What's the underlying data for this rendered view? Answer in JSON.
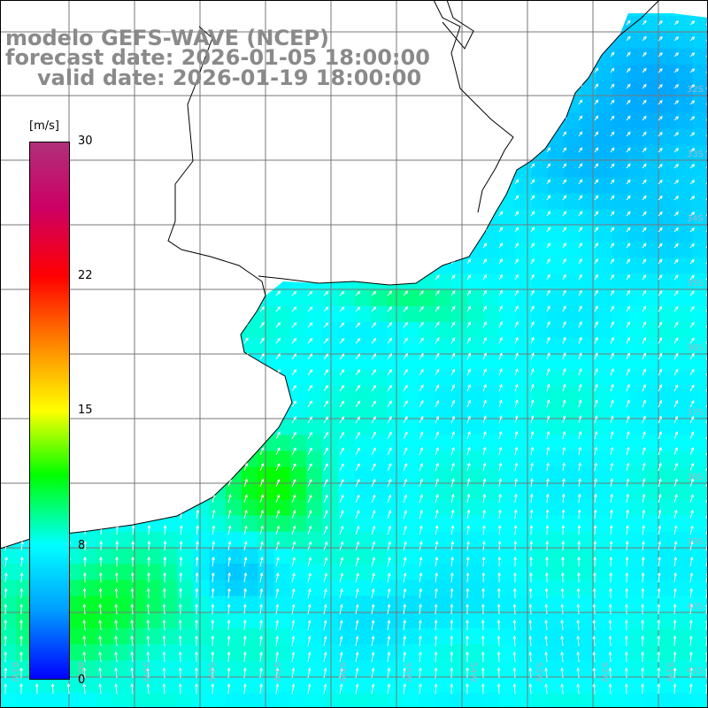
{
  "title": {
    "line1": "modelo GEFS-WAVE (NCEP)",
    "line2": "forecast date: 2026-01-05 18:00:00",
    "line3": "valid date: 2026-01-19 18:00:00"
  },
  "colorbar": {
    "unit": "[m/s]",
    "ticks": [
      "30",
      "22",
      "15",
      "8",
      "0"
    ],
    "min": 0,
    "max": 30,
    "colors": [
      "#0000ff",
      "#00a0ff",
      "#00ffff",
      "#00ff00",
      "#ffff00",
      "#ff8000",
      "#ff0000",
      "#cc0066",
      "#b0307a"
    ]
  },
  "map": {
    "lat_labels": [
      "32S",
      "33S",
      "34S",
      "35S",
      "36S",
      "37S",
      "38S",
      "39S",
      "40S",
      "41S"
    ],
    "lon_labels": [
      "61W",
      "60W",
      "59W",
      "58W",
      "57W",
      "56W",
      "55W",
      "54W",
      "53W",
      "52W",
      "51W"
    ],
    "land_color": "#ffffff",
    "vector_color": "#ffffff"
  }
}
